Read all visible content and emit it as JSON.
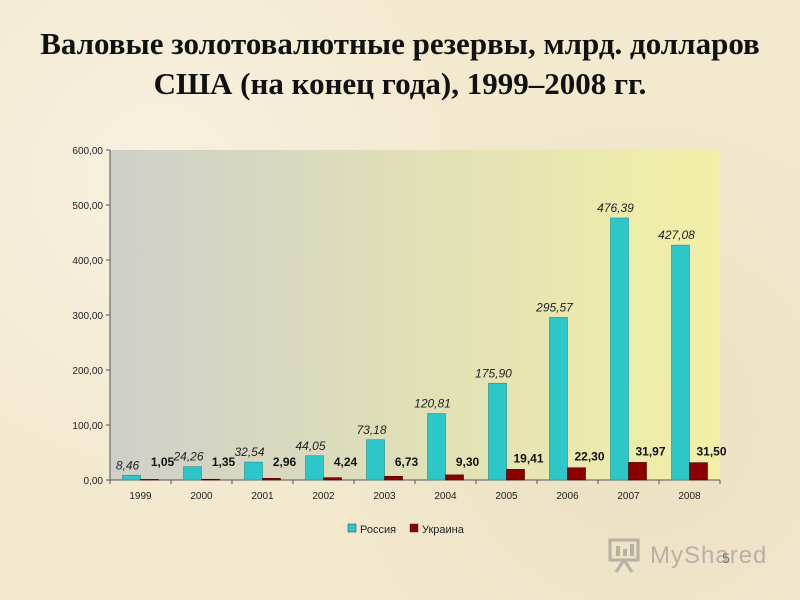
{
  "title_line1": "Валовые золотовалютные резервы, млрд. долларов",
  "title_line2": "США (на конец года), 1999–2008 гг.",
  "watermark_text": "MyShared",
  "slide_number": "5",
  "colors": {
    "russia": "#2ec7c9",
    "ukraine": "#8b0000",
    "plot_bg_left": "#cfcfc9",
    "plot_bg_right": "#f2f0a6"
  },
  "chart_data": {
    "type": "bar",
    "categories": [
      "1999",
      "2000",
      "2001",
      "2002",
      "2003",
      "2004",
      "2005",
      "2006",
      "2007",
      "2008"
    ],
    "series": [
      {
        "name": "Россия",
        "values": [
          8.46,
          24.26,
          32.54,
          44.05,
          73.18,
          120.81,
          175.9,
          295.57,
          476.39,
          427.08
        ],
        "labels": [
          "8,46",
          "24,26",
          "32,54",
          "44,05",
          "73,18",
          "120,81",
          "175,90",
          "295,57",
          "476,39",
          "427,08"
        ]
      },
      {
        "name": "Украина",
        "values": [
          1.05,
          1.35,
          2.96,
          4.24,
          6.73,
          9.3,
          19.41,
          22.3,
          31.97,
          31.5
        ],
        "labels": [
          "1,05",
          "1,35",
          "2,96",
          "4,24",
          "6,73",
          "9,30",
          "19,41",
          "22,30",
          "31,97",
          "31,50"
        ]
      }
    ],
    "y_ticks": [
      "0,00",
      "100,00",
      "200,00",
      "300,00",
      "400,00",
      "500,00",
      "600,00"
    ],
    "ylim": [
      0,
      600
    ],
    "grid": false,
    "legend_position": "bottom"
  }
}
